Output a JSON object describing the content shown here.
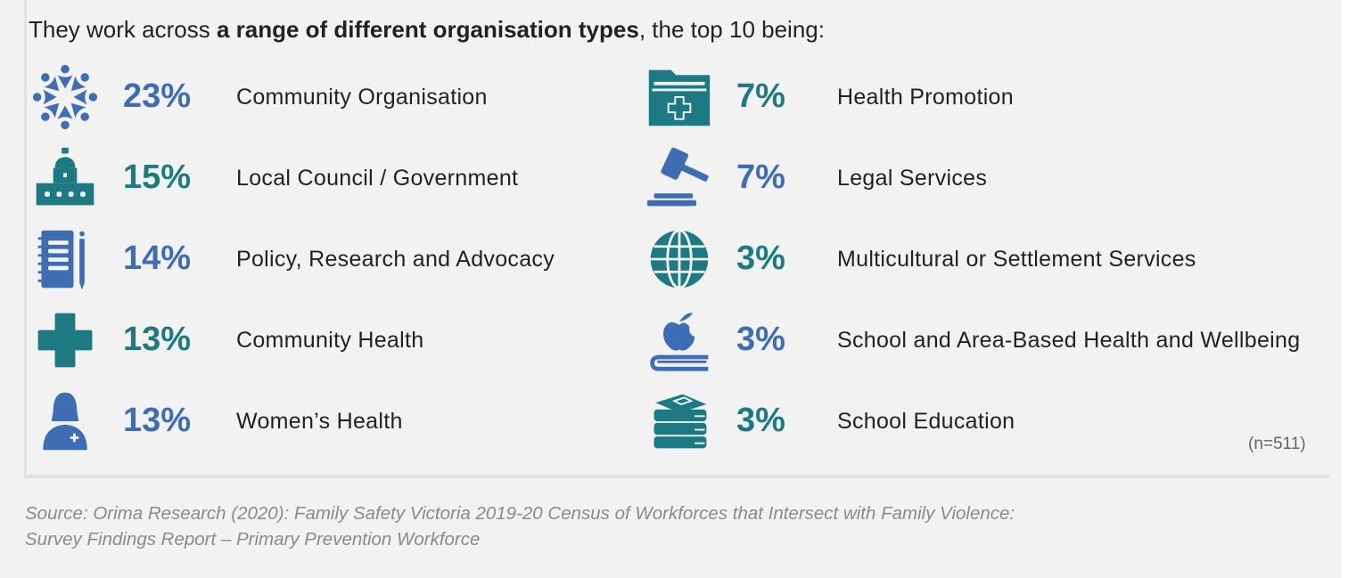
{
  "title": {
    "prefix": "They work across ",
    "bold": "a range of different organisation types",
    "suffix": ", the top 10 being:"
  },
  "colors": {
    "blue": "#3f6db3",
    "teal": "#1d7a82"
  },
  "left_items": [
    {
      "pct": "23%",
      "label": "Community Organisation",
      "icon": "people-circle-icon",
      "color": "blue"
    },
    {
      "pct": "15%",
      "label": "Local Council / Government",
      "icon": "government-building-icon",
      "color": "teal"
    },
    {
      "pct": "14%",
      "label": "Policy, Research and Advocacy",
      "icon": "notebook-pen-icon",
      "color": "blue"
    },
    {
      "pct": "13%",
      "label": "Community Health",
      "icon": "medical-cross-icon",
      "color": "teal"
    },
    {
      "pct": "13%",
      "label": "Women’s Health",
      "icon": "female-nurse-icon",
      "color": "blue"
    }
  ],
  "right_items": [
    {
      "pct": "7%",
      "label": "Health Promotion",
      "icon": "medical-folder-icon",
      "color": "teal"
    },
    {
      "pct": "7%",
      "label": "Legal Services",
      "icon": "gavel-icon",
      "color": "blue"
    },
    {
      "pct": "3%",
      "label": "Multicultural or Settlement Services",
      "icon": "globe-icon",
      "color": "teal"
    },
    {
      "pct": "3%",
      "label": "School and Area-Based Health and Wellbeing",
      "icon": "apple-book-icon",
      "color": "blue"
    },
    {
      "pct": "3%",
      "label": "School Education",
      "icon": "books-stack-icon",
      "color": "teal"
    }
  ],
  "sample_size": "(n=511)",
  "source": {
    "line1": "Source: Orima Research (2020): Family Safety Victoria 2019-20 Census of Workforces that Intersect with Family Violence:",
    "line2": "Survey Findings Report – Primary Prevention Workforce"
  }
}
